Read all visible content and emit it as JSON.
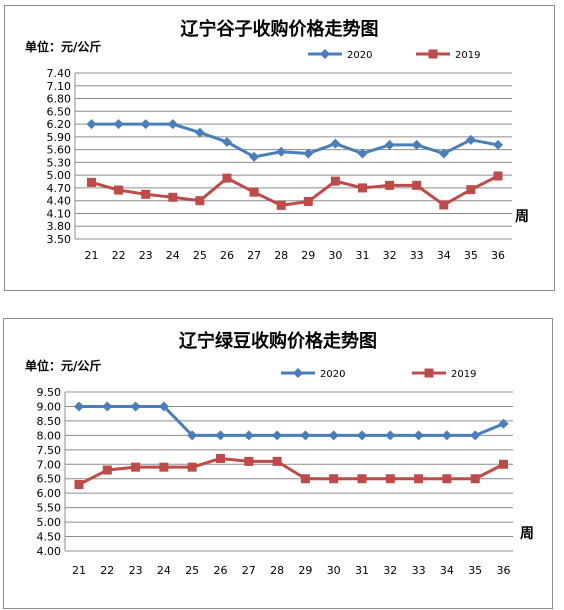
{
  "chart_data": [
    {
      "type": "line",
      "title": "辽宁谷子收购价格走势图",
      "ylabel": "单位：元/公斤",
      "xlabel": "周",
      "categories": [
        "21",
        "22",
        "23",
        "24",
        "25",
        "26",
        "27",
        "28",
        "29",
        "30",
        "31",
        "32",
        "33",
        "34",
        "35",
        "36"
      ],
      "ylim": [
        3.5,
        7.4
      ],
      "yticks": [
        "7.40",
        "7.10",
        "6.80",
        "6.50",
        "6.20",
        "5.90",
        "5.60",
        "5.30",
        "5.00",
        "4.70",
        "4.40",
        "4.10",
        "3.80",
        "3.50"
      ],
      "grid": true,
      "legend_position": "top-right",
      "series": [
        {
          "name": "2020",
          "color": "#4a7ebb",
          "marker": "diamond",
          "values": [
            6.2,
            6.2,
            6.2,
            6.2,
            6.0,
            5.78,
            5.43,
            5.55,
            5.51,
            5.74,
            5.51,
            5.71,
            5.71,
            5.51,
            5.83,
            5.71
          ]
        },
        {
          "name": "2019",
          "color": "#be4b48",
          "marker": "square",
          "values": [
            4.83,
            4.65,
            4.55,
            4.48,
            4.4,
            4.93,
            4.6,
            4.29,
            4.38,
            4.86,
            4.7,
            4.76,
            4.76,
            4.3,
            4.66,
            4.98
          ]
        }
      ]
    },
    {
      "type": "line",
      "title": "辽宁绿豆收购价格走势图",
      "ylabel": "单位：元/公斤",
      "xlabel": "周",
      "categories": [
        "21",
        "22",
        "23",
        "24",
        "25",
        "26",
        "27",
        "28",
        "29",
        "30",
        "31",
        "32",
        "33",
        "34",
        "35",
        "36"
      ],
      "ylim": [
        4.0,
        9.5
      ],
      "yticks": [
        "9.50",
        "9.00",
        "8.50",
        "8.00",
        "7.50",
        "7.00",
        "6.50",
        "6.00",
        "5.50",
        "5.00",
        "4.50",
        "4.00"
      ],
      "grid": true,
      "legend_position": "top-right",
      "series": [
        {
          "name": "2020",
          "color": "#4a7ebb",
          "marker": "diamond",
          "values": [
            9.0,
            9.0,
            9.0,
            9.0,
            8.0,
            8.0,
            8.0,
            8.0,
            8.0,
            8.0,
            8.0,
            8.0,
            8.0,
            8.0,
            8.0,
            8.4
          ]
        },
        {
          "name": "2019",
          "color": "#be4b48",
          "marker": "square",
          "values": [
            6.3,
            6.8,
            6.9,
            6.9,
            6.9,
            7.2,
            7.1,
            7.1,
            6.5,
            6.5,
            6.5,
            6.5,
            6.5,
            6.5,
            6.5,
            7.0
          ]
        }
      ]
    }
  ]
}
